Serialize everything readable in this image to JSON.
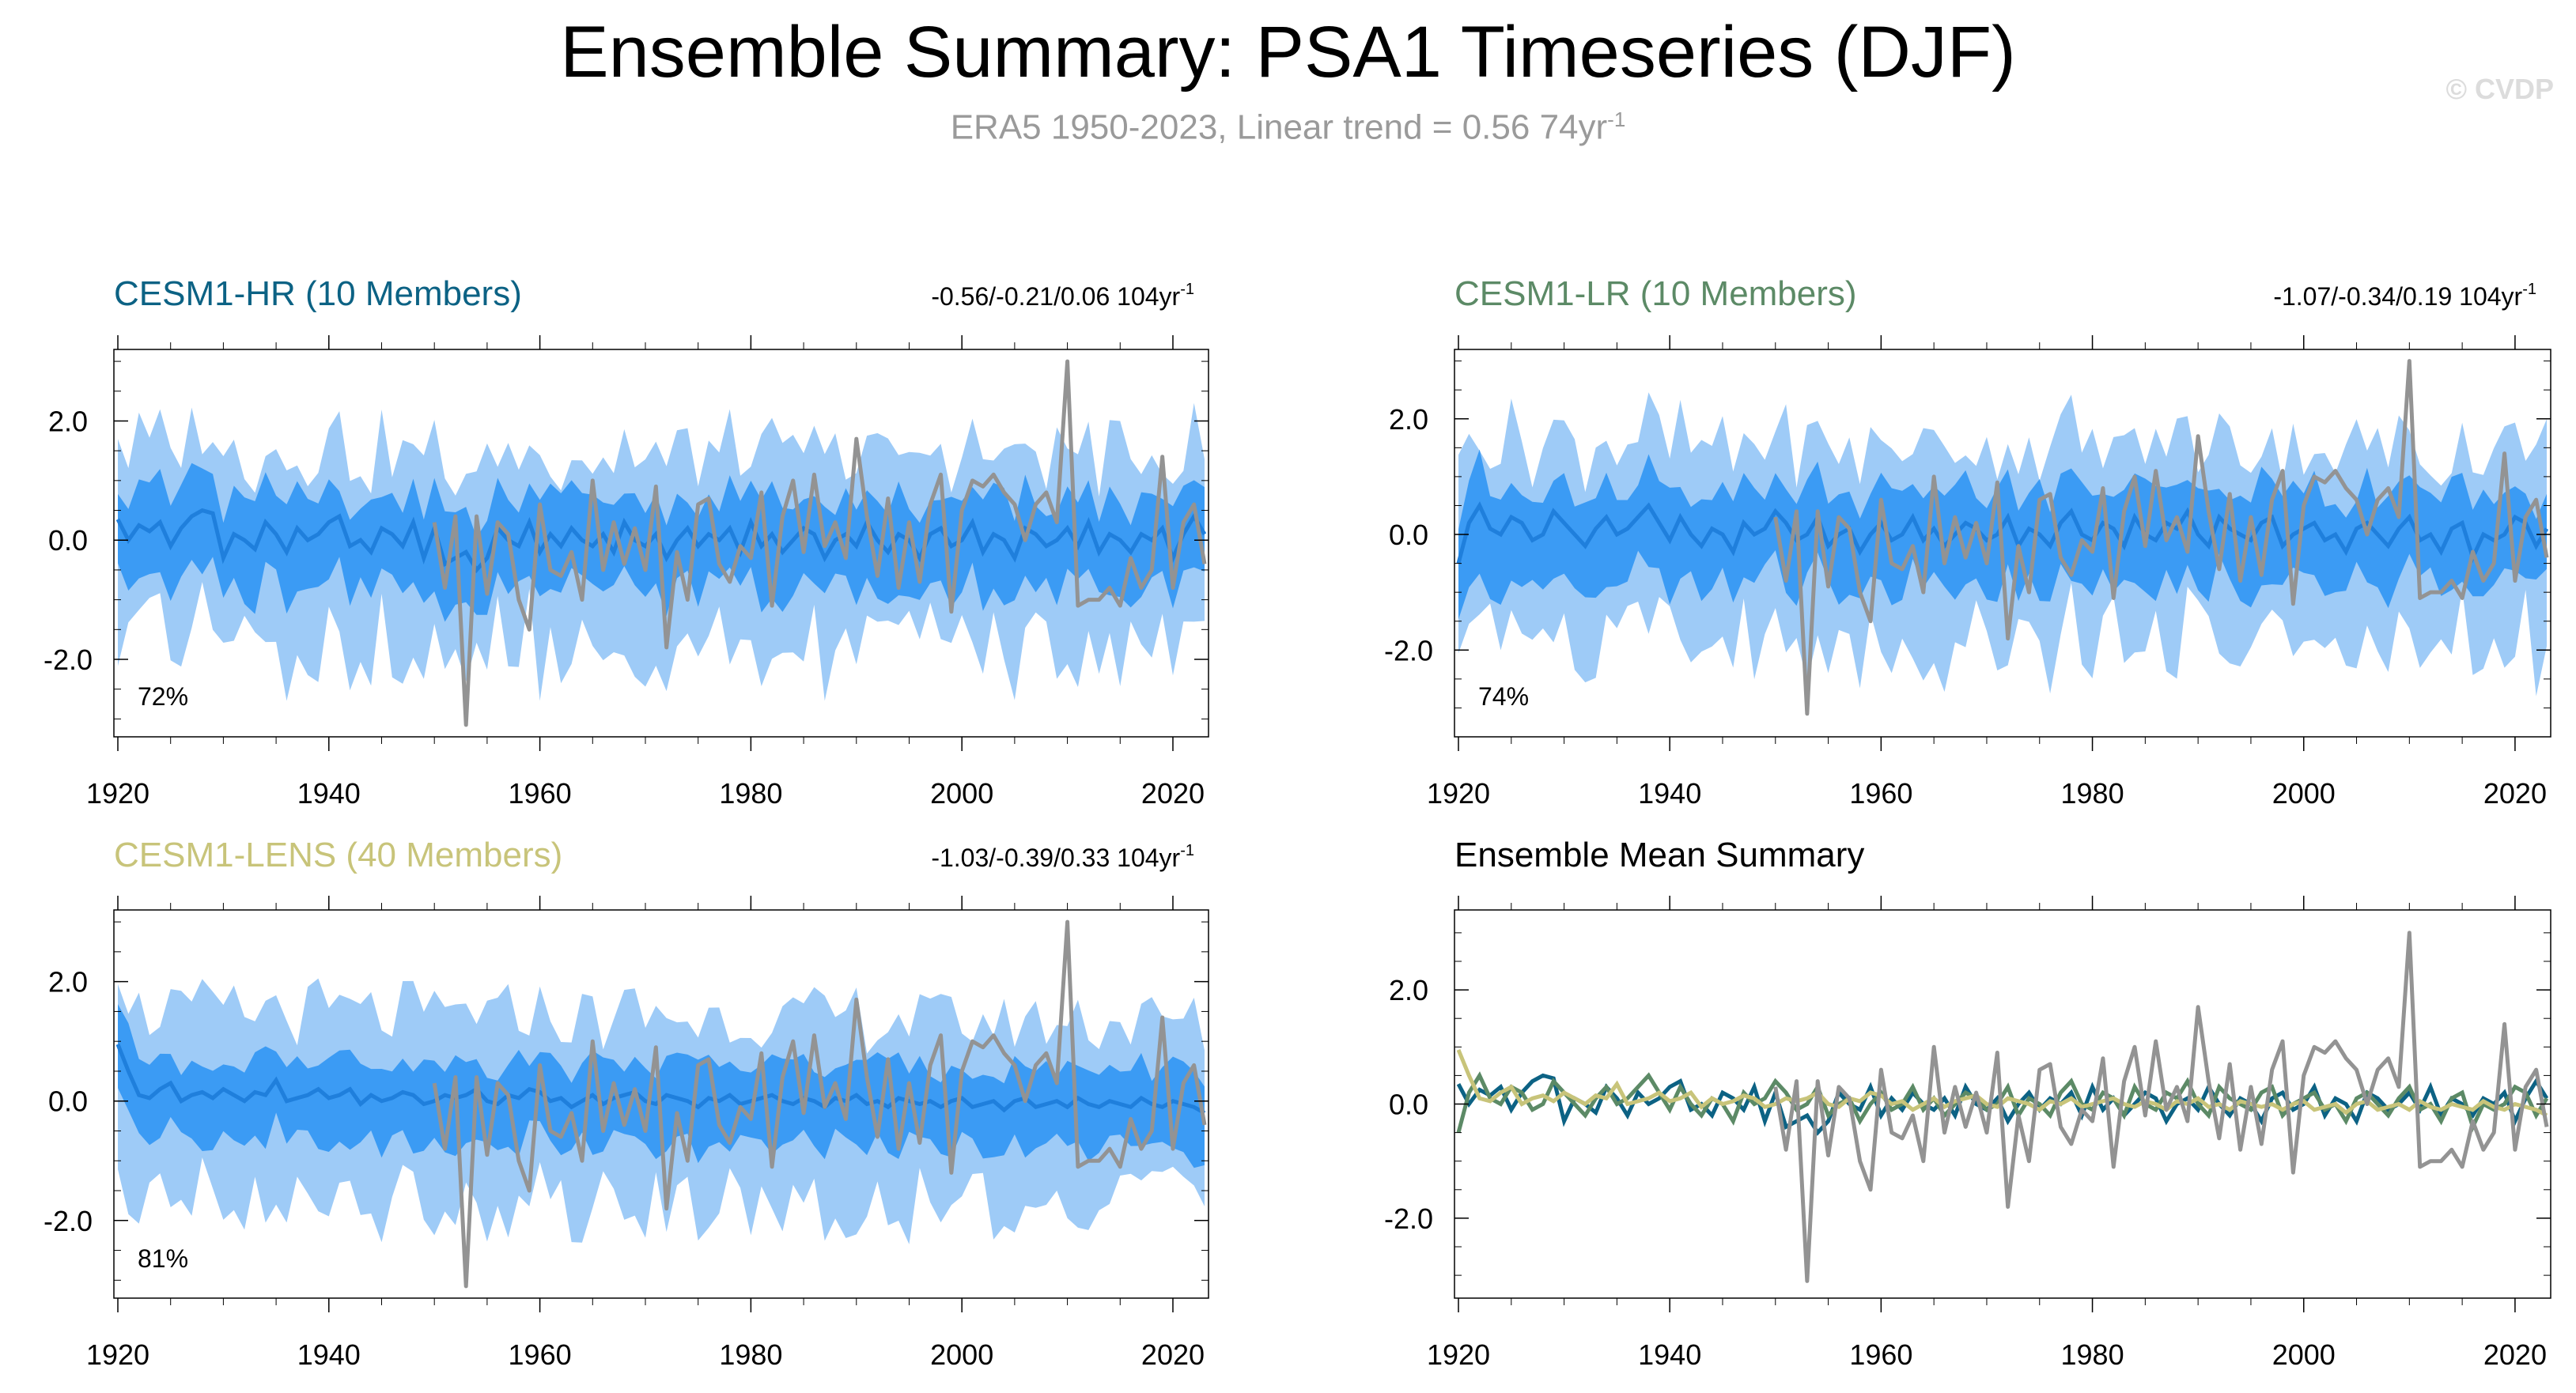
{
  "title": "Ensemble Summary: PSA1 Timeseries (DJF)",
  "subtitle": {
    "text": "ERA5 1950-2023, Linear trend = 0.56 74yr",
    "superscript": "-1"
  },
  "watermark": "© CVDP",
  "colors": {
    "band_outer": "#9ecbf7",
    "band_inner": "#3b9bf4",
    "ens_mean_line": "#1f7fdc",
    "observed": "#939393",
    "cesm1_hr": "#0c6284",
    "cesm1_lr": "#5c8a66",
    "cesm1_lens": "#c8c47a"
  },
  "chart_data": [
    {
      "type": "area",
      "panel": "CESM1-HR",
      "title": "CESM1-HR (10 Members)",
      "title_color": "#0c6284",
      "trend_text": "-0.56/-0.21/0.06 104yr",
      "trend_superscript": "-1",
      "percent_label": "72%",
      "years": [
        1920,
        2023
      ],
      "x_ticks": [
        "1920",
        "1940",
        "1960",
        "1980",
        "2000",
        "2020"
      ],
      "y_ticks": [
        "2.0",
        "0.0",
        "-2.0"
      ],
      "ylim": [
        -3.3,
        3.2
      ],
      "band_outer_hw": 1.25,
      "band_inner_hw": 0.6,
      "ensemble_mean": [
        0.35,
        0.0,
        0.25,
        0.15,
        0.3,
        -0.1,
        0.2,
        0.4,
        0.5,
        0.45,
        -0.3,
        0.1,
        0.0,
        -0.15,
        0.3,
        0.1,
        -0.2,
        0.2,
        0.0,
        0.1,
        0.3,
        0.4,
        -0.1,
        0.0,
        -0.2,
        0.2,
        0.1,
        -0.1,
        0.3,
        -0.3,
        0.2,
        -0.4,
        -0.3,
        -0.2,
        -0.5,
        -0.3,
        0.2,
        0.0,
        -0.1,
        0.3,
        -0.2,
        0.1,
        -0.1,
        0.2,
        0.0,
        -0.1,
        0.1,
        -0.2,
        0.3,
        0.0,
        -0.1,
        0.1,
        -0.3,
        0.0,
        0.2,
        -0.1,
        0.1,
        0.0,
        0.2,
        -0.2,
        0.3,
        -0.1,
        0.1,
        -0.2,
        0.0,
        0.2,
        0.1,
        -0.3,
        0.0,
        0.1,
        -0.1,
        0.3,
        0.0,
        -0.2,
        0.1,
        0.0,
        -0.3,
        0.1,
        0.2,
        -0.1,
        0.0,
        0.3,
        -0.2,
        0.1,
        0.0,
        -0.3,
        0.2,
        0.1,
        -0.1,
        0.0,
        0.2,
        -0.1,
        0.3,
        -0.2,
        0.1,
        0.0,
        -0.2,
        0.1,
        0.0,
        0.2,
        -0.3,
        0.1,
        0.4,
        0.1
      ]
    },
    {
      "type": "area",
      "panel": "CESM1-LR",
      "title": "CESM1-LR (10 Members)",
      "title_color": "#5c8a66",
      "trend_text": "-1.07/-0.34/0.19 104yr",
      "trend_superscript": "-1",
      "percent_label": "74%",
      "years": [
        1920,
        2023
      ],
      "x_ticks": [
        "1920",
        "1940",
        "1960",
        "1980",
        "2000",
        "2020"
      ],
      "y_ticks": [
        "2.0",
        "0.0",
        "-2.0"
      ],
      "ylim": [
        -3.5,
        3.2
      ],
      "band_outer_hw": 1.3,
      "band_inner_hw": 0.65,
      "ensemble_mean": [
        -0.5,
        0.2,
        0.5,
        0.1,
        0.0,
        0.3,
        0.2,
        -0.1,
        0.0,
        0.4,
        0.2,
        0.0,
        -0.2,
        0.1,
        0.3,
        0.0,
        0.1,
        0.3,
        0.5,
        0.2,
        -0.1,
        0.3,
        0.0,
        -0.2,
        0.1,
        0.0,
        -0.3,
        0.2,
        0.0,
        0.1,
        0.4,
        0.2,
        -0.1,
        0.0,
        0.3,
        -0.2,
        0.0,
        0.1,
        -0.3,
        0.0,
        0.2,
        -0.1,
        0.0,
        0.3,
        -0.1,
        0.1,
        -0.2,
        0.0,
        0.2,
        0.1,
        -0.1,
        0.0,
        0.3,
        -0.2,
        0.1,
        0.0,
        -0.2,
        0.2,
        0.4,
        0.0,
        -0.1,
        0.2,
        0.1,
        -0.2,
        0.3,
        0.0,
        -0.1,
        0.2,
        0.1,
        0.4,
        0.0,
        -0.2,
        0.3,
        0.1,
        0.0,
        -0.1,
        0.2,
        0.3,
        -0.2,
        0.0,
        0.1,
        0.2,
        -0.1,
        0.0,
        -0.3,
        0.1,
        0.2,
        0.0,
        -0.2,
        0.1,
        0.3,
        -0.1,
        0.0,
        -0.3,
        0.1,
        0.2,
        -0.4,
        0.0,
        -0.1,
        0.0,
        0.3,
        0.2,
        -0.2,
        0.1
      ]
    },
    {
      "type": "area",
      "panel": "CESM1-LENS",
      "title": "CESM1-LENS (40 Members)",
      "title_color": "#c8c47a",
      "trend_text": "-1.03/-0.39/0.33 104yr",
      "trend_superscript": "-1",
      "percent_label": "81%",
      "years": [
        1920,
        2023
      ],
      "x_ticks": [
        "1920",
        "1940",
        "1960",
        "1980",
        "2000",
        "2020"
      ],
      "y_ticks": [
        "2.0",
        "0.0",
        "-2.0"
      ],
      "ylim": [
        -3.3,
        3.2
      ],
      "band_outer_hw": 1.2,
      "band_inner_hw": 0.55,
      "ensemble_mean": [
        0.95,
        0.5,
        0.1,
        0.05,
        0.2,
        0.3,
        0.0,
        0.1,
        0.15,
        0.05,
        0.2,
        0.1,
        0.0,
        0.15,
        0.1,
        0.35,
        0.0,
        0.05,
        0.1,
        0.2,
        0.05,
        0.1,
        0.2,
        -0.05,
        0.1,
        0.0,
        0.05,
        0.15,
        0.1,
        -0.05,
        0.0,
        0.1,
        0.05,
        0.1,
        0.2,
        0.0,
        -0.05,
        0.1,
        0.05,
        0.2,
        0.15,
        0.0,
        0.05,
        -0.1,
        0.0,
        0.1,
        -0.05,
        0.05,
        0.1,
        0.15,
        0.0,
        -0.05,
        0.1,
        0.05,
        0.0,
        -0.1,
        0.05,
        0.0,
        0.1,
        -0.05,
        0.0,
        0.05,
        0.1,
        0.0,
        -0.05,
        0.05,
        0.0,
        -0.1,
        0.05,
        0.0,
        0.1,
        -0.05,
        0.0,
        -0.1,
        0.05,
        0.0,
        -0.05,
        0.0,
        -0.1,
        0.0,
        0.05,
        -0.1,
        -0.05,
        0.0,
        -0.15,
        0.0,
        0.05,
        -0.1,
        -0.05,
        0.0,
        -0.1,
        0.05,
        -0.05,
        -0.1,
        0.0,
        -0.05,
        -0.1,
        0.05,
        -0.05,
        -0.1,
        0.0,
        -0.05,
        -0.1,
        -0.2
      ]
    },
    {
      "type": "line",
      "panel": "Ensemble Mean Summary",
      "title": "Ensemble Mean Summary",
      "title_color": "#000000",
      "years": [
        1920,
        2023
      ],
      "x_ticks": [
        "1920",
        "1940",
        "1960",
        "1980",
        "2000",
        "2020"
      ],
      "y_ticks": [
        "2.0",
        "0.0",
        "-2.0"
      ],
      "ylim": [
        -3.4,
        3.4
      ],
      "series_from_panels": [
        "CESM1-HR",
        "CESM1-LR",
        "CESM1-LENS"
      ],
      "series_colors": [
        "#0c6284",
        "#5c8a66",
        "#c8c47a"
      ]
    }
  ],
  "observed": {
    "start_year": 1950,
    "values": [
      0.3,
      -0.8,
      0.4,
      -3.1,
      0.4,
      -0.9,
      0.3,
      0.1,
      -1.0,
      -1.5,
      0.6,
      -0.5,
      -0.6,
      -0.2,
      -1.0,
      1.0,
      -0.5,
      0.3,
      -0.4,
      0.2,
      -0.5,
      0.9,
      -1.8,
      -0.2,
      -1.0,
      0.6,
      0.7,
      -0.4,
      -0.7,
      -0.1,
      -0.3,
      0.8,
      -1.1,
      0.4,
      1.0,
      -0.2,
      1.1,
      -0.1,
      0.3,
      -0.3,
      1.7,
      0.4,
      -0.6,
      0.7,
      -0.8,
      0.3,
      -0.7,
      0.6,
      1.1,
      -1.2,
      0.5,
      1.0,
      0.9,
      1.1,
      0.8,
      0.6,
      0.0,
      0.6,
      0.8,
      0.3,
      3.0,
      -1.1,
      -1.0,
      -1.0,
      -0.8,
      -1.1,
      -0.3,
      -0.8,
      -0.5,
      1.4,
      -0.8,
      0.3,
      0.6,
      -0.4
    ]
  }
}
